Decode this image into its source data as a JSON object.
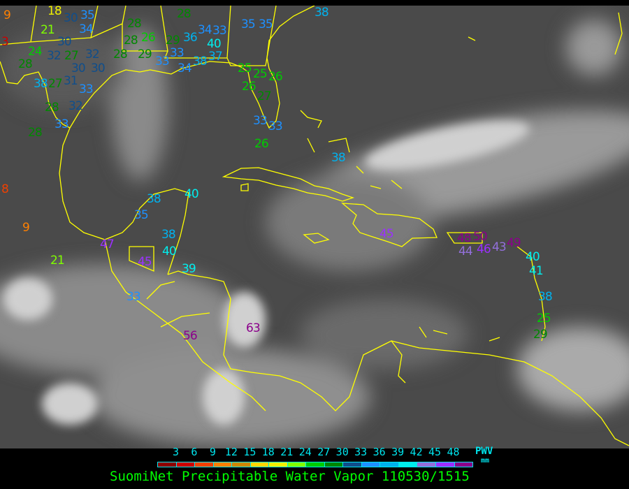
{
  "title": "SuomiNet Precipitable Water Vapor 110530/1515",
  "legend": {
    "ticks": [
      "3",
      "6",
      "9",
      "12",
      "15",
      "18",
      "21",
      "24",
      "27",
      "30",
      "33",
      "36",
      "39",
      "42",
      "45",
      "48"
    ],
    "unit_label": "PWV",
    "unit": "mm",
    "colors": [
      "#8b0000",
      "#cc0000",
      "#f04000",
      "#ff8000",
      "#cc8800",
      "#ffd700",
      "#f0f000",
      "#80ff00",
      "#00cc00",
      "#008800",
      "#104e8b",
      "#1e90ff",
      "#00b2ee",
      "#00eeee",
      "#9370db",
      "#9b30ff",
      "#8b008b"
    ]
  },
  "coastline_color": "#ffff00",
  "stations": [
    "9",
    "18",
    "30",
    "35",
    "34",
    "21",
    "30",
    "24",
    "27",
    "32",
    "32",
    "3",
    "28",
    "30",
    "30",
    "38",
    "27",
    "31",
    "33",
    "28",
    "32",
    "28",
    "33",
    "28",
    "28",
    "26",
    "28",
    "29",
    "36",
    "28",
    "29",
    "33",
    "34",
    "33",
    "40",
    "37",
    "35",
    "35",
    "33",
    "38",
    "34",
    "25",
    "25",
    "26",
    "27",
    "26",
    "33",
    "33",
    "26",
    "38",
    "38",
    "8",
    "9",
    "40",
    "38",
    "35",
    "47",
    "38",
    "40",
    "45",
    "21",
    "39",
    "33",
    "56",
    "63",
    "45",
    "48",
    "50",
    "46",
    "44",
    "43",
    "49",
    "40",
    "41",
    "38",
    "25",
    "29"
  ]
}
